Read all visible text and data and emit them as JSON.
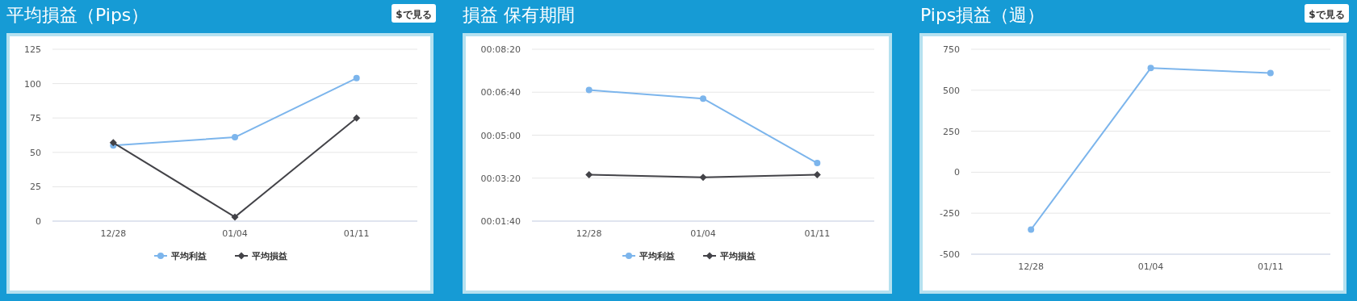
{
  "chart_data": [
    {
      "type": "line",
      "title": "平均損益（Pips）",
      "annotations": [
        "$で見る"
      ],
      "categories": [
        "12/28",
        "01/04",
        "01/11"
      ],
      "ylim": [
        0,
        125
      ],
      "yticks": [
        0,
        25,
        50,
        75,
        100,
        125
      ],
      "grid": "y",
      "legend": "bottom",
      "series": [
        {
          "name": "平均利益",
          "color": "#7cb5ec",
          "marker": "circle",
          "values": [
            55,
            61,
            104
          ]
        },
        {
          "name": "平均損益",
          "color": "#434348",
          "marker": "diamond",
          "values": [
            57,
            3,
            75
          ]
        }
      ]
    },
    {
      "type": "line",
      "title": "損益 保有期間",
      "categories": [
        "12/28",
        "01/04",
        "01/11"
      ],
      "ylim": [
        100,
        500
      ],
      "yticks": [
        {
          "value": 100,
          "label": "00:01:40"
        },
        {
          "value": 200,
          "label": "00:03:20"
        },
        {
          "value": 300,
          "label": "00:05:00"
        },
        {
          "value": 400,
          "label": "00:06:40"
        },
        {
          "value": 500,
          "label": "00:08:20"
        }
      ],
      "grid": "y",
      "legend": "bottom",
      "series": [
        {
          "name": "平均利益",
          "color": "#7cb5ec",
          "marker": "circle",
          "values": [
            405,
            385,
            235
          ]
        },
        {
          "name": "平均損益",
          "color": "#434348",
          "marker": "diamond",
          "values": [
            208,
            202,
            208
          ]
        }
      ]
    },
    {
      "type": "line",
      "title": "Pips損益（週）",
      "annotations": [
        "$で見る"
      ],
      "categories": [
        "12/28",
        "01/04",
        "01/11"
      ],
      "ylim": [
        -500,
        750
      ],
      "yticks": [
        -500,
        -250,
        0,
        250,
        500,
        750
      ],
      "grid": "y",
      "series": [
        {
          "color": "#7cb5ec",
          "marker": "circle",
          "values": [
            -350,
            635,
            605
          ]
        }
      ]
    }
  ]
}
